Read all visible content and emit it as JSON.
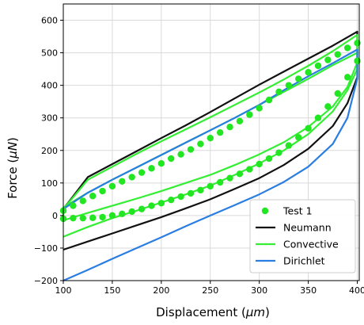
{
  "chart_data": {
    "type": "line",
    "xlabel": {
      "prefix": "Displacement (",
      "symbol": "μm",
      "suffix": ")"
    },
    "ylabel": {
      "prefix": "Force (",
      "symbol": "μN",
      "suffix": ")"
    },
    "xlim": [
      100,
      402
    ],
    "ylim": [
      -200,
      650
    ],
    "xticks": [
      100,
      150,
      200,
      250,
      300,
      350,
      400
    ],
    "yticks": [
      -200,
      -100,
      0,
      100,
      200,
      300,
      400,
      500,
      600
    ],
    "grid": true,
    "legend_position": "bottom-right",
    "series": [
      {
        "name": "Test 1",
        "kind": "scatter",
        "color": "#22e622",
        "x": [
          100,
          110,
          120,
          130,
          140,
          150,
          160,
          170,
          180,
          190,
          200,
          210,
          220,
          230,
          240,
          250,
          260,
          270,
          280,
          290,
          300,
          310,
          320,
          330,
          340,
          350,
          360,
          370,
          380,
          390,
          400,
          400,
          390,
          380,
          370,
          360,
          350,
          340,
          330,
          320,
          310,
          300,
          290,
          280,
          270,
          260,
          250,
          240,
          230,
          220,
          210,
          200,
          190,
          180,
          170,
          160,
          150,
          140,
          130,
          120,
          110,
          100
        ],
        "y": [
          -10,
          -8,
          -8,
          -7,
          -5,
          0,
          5,
          12,
          20,
          30,
          38,
          48,
          58,
          68,
          78,
          90,
          102,
          115,
          128,
          142,
          158,
          175,
          193,
          215,
          240,
          268,
          300,
          335,
          375,
          425,
          475,
          530,
          515,
          495,
          478,
          460,
          440,
          420,
          400,
          380,
          355,
          330,
          310,
          290,
          272,
          255,
          238,
          220,
          203,
          188,
          175,
          160,
          145,
          132,
          118,
          105,
          90,
          75,
          60,
          45,
          30,
          15
        ]
      },
      {
        "name": "Neumann",
        "kind": "line",
        "color": "#111111",
        "x": [
          100,
          125,
          150,
          175,
          200,
          225,
          250,
          275,
          300,
          325,
          350,
          375,
          390,
          400,
          400,
          375,
          350,
          325,
          300,
          275,
          250,
          225,
          200,
          175,
          150,
          125,
          100
        ],
        "y": [
          -105,
          -80,
          -55,
          -30,
          -5,
          22,
          50,
          82,
          115,
          155,
          205,
          275,
          345,
          425,
          565,
          522,
          482,
          442,
          402,
          360,
          318,
          277,
          238,
          198,
          158,
          118,
          20
        ]
      },
      {
        "name": "Convective",
        "kind": "line",
        "color": "#33ee33",
        "x": [
          100,
          125,
          150,
          175,
          200,
          225,
          250,
          275,
          300,
          325,
          350,
          375,
          390,
          400,
          400,
          375,
          350,
          325,
          300,
          275,
          250,
          225,
          200,
          175,
          150,
          125,
          100,
          100,
          125,
          150,
          175,
          200,
          225,
          250,
          275,
          300,
          325,
          350,
          375,
          390,
          400,
          400,
          375,
          350,
          325,
          300,
          275,
          250,
          225,
          200,
          175,
          150,
          125,
          100
        ],
        "y": [
          -65,
          -35,
          -8,
          15,
          40,
          65,
          92,
          125,
          160,
          200,
          250,
          320,
          385,
          450,
          555,
          505,
          460,
          418,
          378,
          340,
          302,
          265,
          228,
          190,
          150,
          110,
          20,
          -15,
          8,
          30,
          52,
          75,
          100,
          125,
          155,
          188,
          225,
          272,
          335,
          395,
          470,
          500,
          462,
          420,
          380,
          340,
          300,
          262,
          224,
          186,
          148,
          110,
          70,
          25
        ]
      },
      {
        "name": "Dirichlet",
        "kind": "line",
        "color": "#2a7de1",
        "x": [
          100,
          125,
          150,
          175,
          200,
          225,
          250,
          275,
          300,
          325,
          350,
          375,
          390,
          400,
          400,
          375,
          350,
          325,
          300,
          275,
          250,
          225,
          200,
          175,
          150,
          125,
          100
        ],
        "y": [
          -200,
          -167,
          -133,
          -100,
          -67,
          -33,
          0,
          32,
          65,
          103,
          150,
          220,
          300,
          420,
          510,
          468,
          428,
          385,
          340,
          300,
          262,
          224,
          186,
          148,
          110,
          70,
          20
        ]
      }
    ]
  }
}
